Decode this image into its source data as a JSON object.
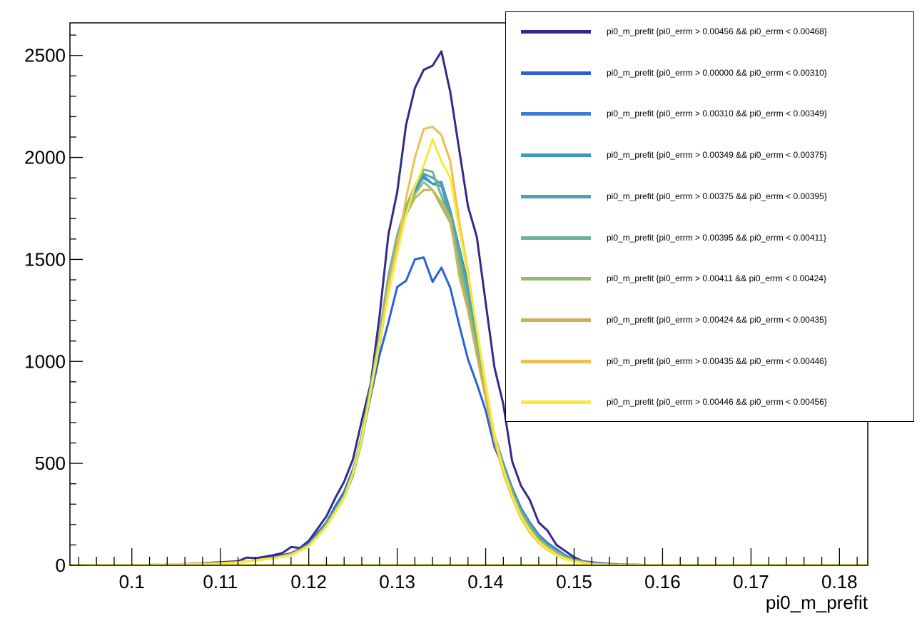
{
  "chart_data": {
    "type": "line",
    "xlabel": "pi0_m_prefit",
    "ylabel": "",
    "xlim": [
      0.093,
      0.1832
    ],
    "ylim": [
      0,
      2660
    ],
    "x_ticks": [
      0.1,
      0.11,
      0.12,
      0.13,
      0.14,
      0.15,
      0.16,
      0.17,
      0.18
    ],
    "x_tick_labels": [
      "0.1",
      "0.11",
      "0.12",
      "0.13",
      "0.14",
      "0.15",
      "0.16",
      "0.17",
      "0.18"
    ],
    "y_ticks": [
      0,
      500,
      1000,
      1500,
      2000,
      2500
    ],
    "y_tick_labels": [
      "0",
      "500",
      "1000",
      "1500",
      "2000",
      "2500"
    ],
    "grid": false,
    "legend_position": "top-right",
    "series": [
      {
        "name": "pi0_m_prefit {pi0_errm > 0.00456 && pi0_errm < 0.00468}",
        "color": "#352a87",
        "x": [
          0.1,
          0.105,
          0.11,
          0.112,
          0.113,
          0.114,
          0.115,
          0.116,
          0.117,
          0.118,
          0.119,
          0.12,
          0.121,
          0.122,
          0.123,
          0.124,
          0.125,
          0.126,
          0.127,
          0.128,
          0.129,
          0.13,
          0.131,
          0.132,
          0.133,
          0.134,
          0.135,
          0.136,
          0.137,
          0.138,
          0.139,
          0.14,
          0.141,
          0.142,
          0.143,
          0.144,
          0.145,
          0.146,
          0.147,
          0.148,
          0.149,
          0.15,
          0.151,
          0.152,
          0.153,
          0.155,
          0.16,
          0.17,
          0.18
        ],
        "y": [
          0,
          5,
          15,
          20,
          38,
          35,
          42,
          50,
          60,
          90,
          85,
          120,
          180,
          240,
          330,
          410,
          520,
          710,
          890,
          1220,
          1620,
          1830,
          2160,
          2340,
          2430,
          2450,
          2520,
          2320,
          2040,
          1760,
          1610,
          1290,
          970,
          790,
          510,
          390,
          320,
          210,
          170,
          100,
          70,
          40,
          20,
          15,
          10,
          5,
          0,
          0,
          0
        ]
      },
      {
        "name": "pi0_m_prefit {pi0_errm > 0.00000 && pi0_errm < 0.00310}",
        "color": "#2d60d6",
        "x": [
          0.1,
          0.105,
          0.11,
          0.112,
          0.113,
          0.114,
          0.115,
          0.116,
          0.117,
          0.118,
          0.119,
          0.12,
          0.121,
          0.122,
          0.123,
          0.124,
          0.125,
          0.126,
          0.127,
          0.128,
          0.129,
          0.13,
          0.131,
          0.132,
          0.133,
          0.134,
          0.135,
          0.136,
          0.137,
          0.138,
          0.139,
          0.14,
          0.141,
          0.142,
          0.143,
          0.144,
          0.145,
          0.146,
          0.147,
          0.148,
          0.149,
          0.15,
          0.151,
          0.152,
          0.153,
          0.155,
          0.16,
          0.17,
          0.18
        ],
        "y": [
          0,
          5,
          12,
          15,
          20,
          25,
          30,
          40,
          50,
          60,
          80,
          110,
          160,
          210,
          290,
          360,
          470,
          620,
          830,
          1030,
          1190,
          1365,
          1395,
          1500,
          1510,
          1390,
          1460,
          1360,
          1180,
          1010,
          890,
          760,
          580,
          480,
          380,
          280,
          210,
          150,
          110,
          70,
          45,
          25,
          15,
          10,
          5,
          3,
          0,
          0,
          0
        ]
      },
      {
        "name": "pi0_m_prefit {pi0_errm > 0.00310 && pi0_errm < 0.00349}",
        "color": "#3d7fd1",
        "x": [
          0.1,
          0.105,
          0.11,
          0.112,
          0.114,
          0.116,
          0.118,
          0.119,
          0.12,
          0.121,
          0.122,
          0.123,
          0.124,
          0.125,
          0.126,
          0.127,
          0.128,
          0.129,
          0.13,
          0.131,
          0.132,
          0.133,
          0.134,
          0.135,
          0.136,
          0.137,
          0.138,
          0.139,
          0.14,
          0.141,
          0.142,
          0.143,
          0.144,
          0.145,
          0.146,
          0.147,
          0.148,
          0.149,
          0.15,
          0.151,
          0.152,
          0.153,
          0.155,
          0.16,
          0.17,
          0.18
        ],
        "y": [
          0,
          5,
          10,
          15,
          25,
          35,
          55,
          75,
          100,
          150,
          210,
          280,
          350,
          460,
          630,
          860,
          1090,
          1340,
          1560,
          1720,
          1860,
          1900,
          1870,
          1880,
          1740,
          1560,
          1380,
          1120,
          880,
          640,
          500,
          380,
          280,
          210,
          150,
          110,
          80,
          50,
          30,
          20,
          12,
          8,
          3,
          0,
          0,
          0
        ]
      },
      {
        "name": "pi0_m_prefit {pi0_errm > 0.00349 && pi0_errm < 0.00375}",
        "color": "#3c97cc",
        "x": [
          0.1,
          0.105,
          0.11,
          0.112,
          0.114,
          0.116,
          0.118,
          0.119,
          0.12,
          0.121,
          0.122,
          0.123,
          0.124,
          0.125,
          0.126,
          0.127,
          0.128,
          0.129,
          0.13,
          0.131,
          0.132,
          0.133,
          0.134,
          0.135,
          0.136,
          0.137,
          0.138,
          0.139,
          0.14,
          0.141,
          0.142,
          0.143,
          0.144,
          0.145,
          0.146,
          0.147,
          0.148,
          0.149,
          0.15,
          0.151,
          0.152,
          0.153,
          0.155,
          0.16,
          0.17,
          0.18
        ],
        "y": [
          0,
          5,
          10,
          15,
          25,
          35,
          55,
          75,
          95,
          140,
          190,
          260,
          330,
          440,
          610,
          840,
          1080,
          1340,
          1560,
          1720,
          1830,
          1910,
          1870,
          1860,
          1700,
          1540,
          1350,
          1100,
          870,
          630,
          490,
          370,
          270,
          200,
          140,
          100,
          70,
          45,
          28,
          18,
          10,
          6,
          3,
          0,
          0,
          0
        ]
      },
      {
        "name": "pi0_m_prefit {pi0_errm > 0.00375 && pi0_errm < 0.00395}",
        "color": "#4aa6b0",
        "x": [
          0.1,
          0.105,
          0.11,
          0.112,
          0.114,
          0.116,
          0.118,
          0.119,
          0.12,
          0.121,
          0.122,
          0.123,
          0.124,
          0.125,
          0.126,
          0.127,
          0.128,
          0.129,
          0.13,
          0.131,
          0.132,
          0.133,
          0.134,
          0.135,
          0.136,
          0.137,
          0.138,
          0.139,
          0.14,
          0.141,
          0.142,
          0.143,
          0.144,
          0.145,
          0.146,
          0.147,
          0.148,
          0.149,
          0.15,
          0.151,
          0.152,
          0.153,
          0.155,
          0.16,
          0.17,
          0.18
        ],
        "y": [
          0,
          5,
          10,
          15,
          25,
          35,
          55,
          75,
          100,
          150,
          200,
          270,
          340,
          450,
          620,
          850,
          1090,
          1360,
          1580,
          1740,
          1850,
          1920,
          1900,
          1870,
          1730,
          1550,
          1350,
          1110,
          870,
          640,
          490,
          370,
          270,
          200,
          140,
          100,
          70,
          45,
          28,
          18,
          10,
          6,
          3,
          0,
          0,
          0
        ]
      },
      {
        "name": "pi0_m_prefit {pi0_errm > 0.00395 && pi0_errm < 0.00411}",
        "color": "#6fb494",
        "x": [
          0.1,
          0.105,
          0.11,
          0.112,
          0.114,
          0.116,
          0.118,
          0.119,
          0.12,
          0.121,
          0.122,
          0.123,
          0.124,
          0.125,
          0.126,
          0.127,
          0.128,
          0.129,
          0.13,
          0.131,
          0.132,
          0.133,
          0.134,
          0.135,
          0.136,
          0.137,
          0.138,
          0.139,
          0.14,
          0.141,
          0.142,
          0.143,
          0.144,
          0.145,
          0.146,
          0.147,
          0.148,
          0.149,
          0.15,
          0.151,
          0.152,
          0.153,
          0.155,
          0.16,
          0.17,
          0.18
        ],
        "y": [
          0,
          5,
          10,
          15,
          25,
          35,
          55,
          75,
          100,
          150,
          200,
          270,
          340,
          460,
          640,
          880,
          1130,
          1420,
          1620,
          1760,
          1860,
          1940,
          1930,
          1810,
          1700,
          1500,
          1300,
          1080,
          850,
          640,
          480,
          360,
          260,
          190,
          130,
          95,
          65,
          40,
          25,
          15,
          10,
          5,
          3,
          0,
          0,
          0
        ]
      },
      {
        "name": "pi0_m_prefit {pi0_errm > 0.00411 && pi0_errm < 0.00424}",
        "color": "#9ab872",
        "x": [
          0.1,
          0.105,
          0.11,
          0.112,
          0.114,
          0.116,
          0.118,
          0.119,
          0.12,
          0.121,
          0.122,
          0.123,
          0.124,
          0.125,
          0.126,
          0.127,
          0.128,
          0.129,
          0.13,
          0.131,
          0.132,
          0.133,
          0.134,
          0.135,
          0.136,
          0.137,
          0.138,
          0.139,
          0.14,
          0.141,
          0.142,
          0.143,
          0.144,
          0.145,
          0.146,
          0.147,
          0.148,
          0.149,
          0.15,
          0.151,
          0.152,
          0.153,
          0.155,
          0.16,
          0.17,
          0.18
        ],
        "y": [
          0,
          5,
          10,
          15,
          25,
          35,
          55,
          75,
          100,
          145,
          195,
          265,
          335,
          450,
          620,
          860,
          1100,
          1380,
          1600,
          1720,
          1820,
          1880,
          1840,
          1760,
          1680,
          1460,
          1260,
          1040,
          830,
          620,
          470,
          350,
          250,
          180,
          125,
          90,
          60,
          38,
          24,
          15,
          9,
          5,
          3,
          0,
          0,
          0
        ]
      },
      {
        "name": "pi0_m_prefit {pi0_errm > 0.00424 && pi0_errm < 0.00435}",
        "color": "#c9b45a",
        "x": [
          0.1,
          0.105,
          0.11,
          0.112,
          0.114,
          0.116,
          0.118,
          0.119,
          0.12,
          0.121,
          0.122,
          0.123,
          0.124,
          0.125,
          0.126,
          0.127,
          0.128,
          0.129,
          0.13,
          0.131,
          0.132,
          0.133,
          0.134,
          0.135,
          0.136,
          0.137,
          0.138,
          0.139,
          0.14,
          0.141,
          0.142,
          0.143,
          0.144,
          0.145,
          0.146,
          0.147,
          0.148,
          0.149,
          0.15,
          0.151,
          0.152,
          0.153,
          0.155,
          0.16,
          0.17,
          0.18
        ],
        "y": [
          0,
          5,
          10,
          15,
          25,
          35,
          55,
          75,
          100,
          145,
          195,
          265,
          335,
          450,
          620,
          860,
          1100,
          1370,
          1560,
          1720,
          1800,
          1840,
          1840,
          1780,
          1700,
          1420,
          1250,
          1030,
          820,
          610,
          460,
          340,
          240,
          170,
          120,
          85,
          55,
          35,
          22,
          14,
          8,
          5,
          3,
          0,
          0,
          0
        ]
      },
      {
        "name": "pi0_m_prefit {pi0_errm > 0.00435 && pi0_errm < 0.00446}",
        "color": "#f1c04a",
        "x": [
          0.1,
          0.105,
          0.11,
          0.112,
          0.114,
          0.116,
          0.118,
          0.119,
          0.12,
          0.121,
          0.122,
          0.123,
          0.124,
          0.125,
          0.126,
          0.127,
          0.128,
          0.129,
          0.13,
          0.131,
          0.132,
          0.133,
          0.134,
          0.135,
          0.136,
          0.137,
          0.138,
          0.139,
          0.14,
          0.141,
          0.142,
          0.143,
          0.144,
          0.145,
          0.146,
          0.147,
          0.148,
          0.149,
          0.15,
          0.151,
          0.152,
          0.153,
          0.155,
          0.16,
          0.17,
          0.18
        ],
        "y": [
          0,
          5,
          10,
          15,
          25,
          35,
          50,
          70,
          95,
          140,
          190,
          260,
          330,
          450,
          620,
          850,
          1100,
          1360,
          1560,
          1800,
          2000,
          2140,
          2150,
          2110,
          1980,
          1690,
          1440,
          1150,
          870,
          620,
          450,
          330,
          230,
          160,
          110,
          75,
          50,
          30,
          20,
          12,
          7,
          4,
          2,
          0,
          0,
          0
        ]
      },
      {
        "name": "pi0_m_prefit {pi0_errm > 0.00446 && pi0_errm < 0.00456}",
        "color": "#f7ea3c",
        "x": [
          0.1,
          0.105,
          0.11,
          0.112,
          0.114,
          0.116,
          0.118,
          0.119,
          0.12,
          0.121,
          0.122,
          0.123,
          0.124,
          0.125,
          0.126,
          0.127,
          0.128,
          0.129,
          0.13,
          0.131,
          0.132,
          0.133,
          0.134,
          0.135,
          0.136,
          0.137,
          0.138,
          0.139,
          0.14,
          0.141,
          0.142,
          0.143,
          0.144,
          0.145,
          0.146,
          0.147,
          0.148,
          0.149,
          0.15,
          0.151,
          0.152,
          0.153,
          0.155,
          0.16,
          0.17,
          0.18
        ],
        "y": [
          0,
          5,
          10,
          15,
          25,
          35,
          50,
          70,
          95,
          140,
          190,
          260,
          330,
          450,
          620,
          850,
          1090,
          1330,
          1530,
          1720,
          1860,
          1960,
          2090,
          1980,
          1900,
          1650,
          1420,
          1160,
          890,
          640,
          470,
          340,
          240,
          170,
          115,
          80,
          52,
          32,
          20,
          12,
          7,
          4,
          2,
          0,
          0,
          0
        ]
      }
    ]
  }
}
